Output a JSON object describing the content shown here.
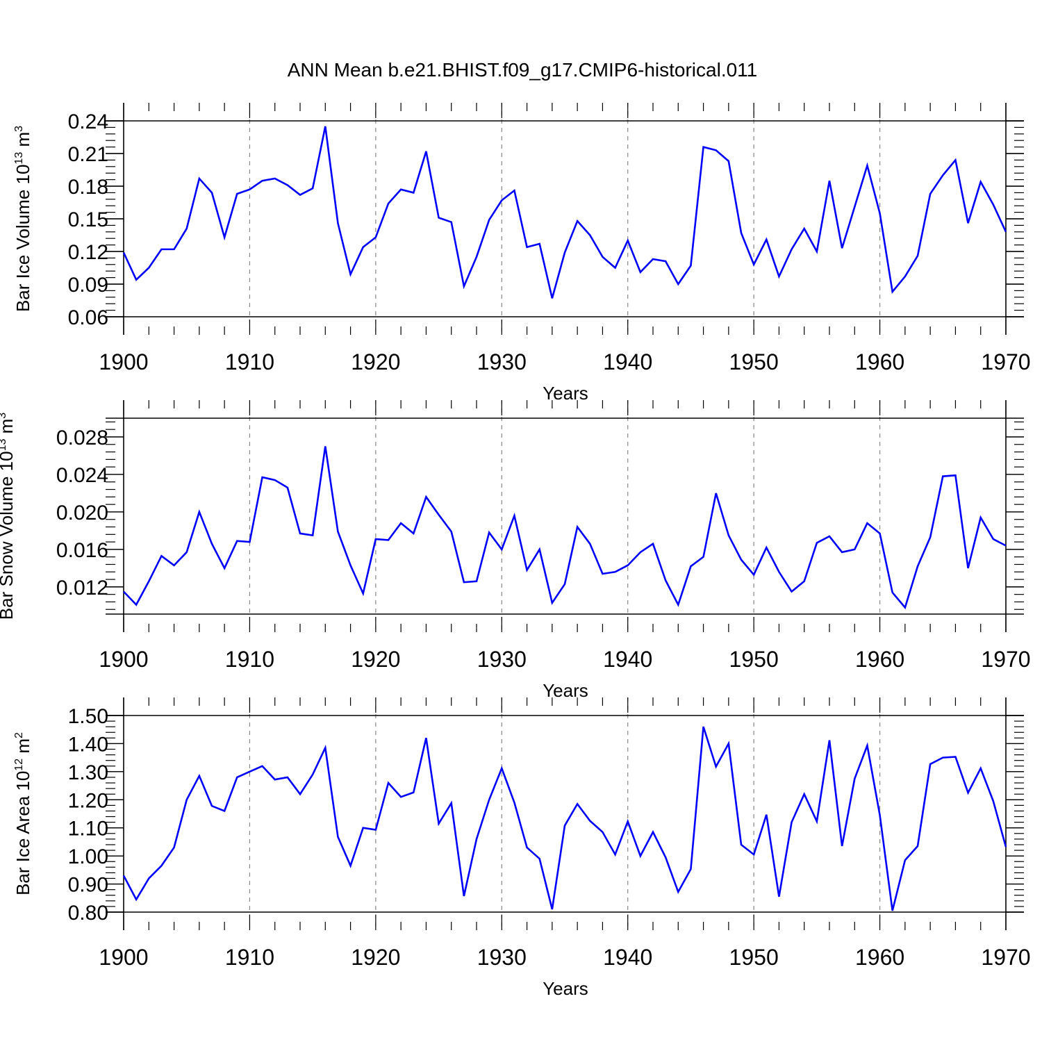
{
  "title": "ANN Mean b.e21.BHIST.f09_g17.CMIP6-historical.011",
  "colors": {
    "line": "#0000ff",
    "axis": "#000000",
    "grid": "#888888"
  },
  "chart_data": [
    {
      "type": "line",
      "xlabel": "Years",
      "ylabel": {
        "prefix": "Bar Ice Volume 10",
        "exp": "13",
        "unit": " m",
        "unit_exp": "3"
      },
      "xlim": [
        1900,
        1970
      ],
      "ylim": [
        0.06,
        0.24
      ],
      "xticks": [
        "1900",
        "1910",
        "1920",
        "1930",
        "1940",
        "1950",
        "1960",
        "1970"
      ],
      "yticks": [
        "0.06",
        "0.09",
        "0.12",
        "0.15",
        "0.18",
        "0.21",
        "0.24"
      ],
      "ytick_values": [
        0.06,
        0.09,
        0.12,
        0.15,
        0.18,
        0.21,
        0.24
      ],
      "grid": "vertical dashed at decades",
      "x_start": 1900,
      "values": [
        0.119,
        0.094,
        0.105,
        0.122,
        0.122,
        0.141,
        0.187,
        0.174,
        0.133,
        0.173,
        0.177,
        0.185,
        0.187,
        0.181,
        0.172,
        0.178,
        0.235,
        0.146,
        0.099,
        0.124,
        0.133,
        0.164,
        0.177,
        0.174,
        0.212,
        0.151,
        0.147,
        0.088,
        0.115,
        0.149,
        0.167,
        0.176,
        0.124,
        0.127,
        0.077,
        0.119,
        0.148,
        0.135,
        0.115,
        0.105,
        0.13,
        0.101,
        0.113,
        0.111,
        0.09,
        0.107,
        0.216,
        0.213,
        0.203,
        0.137,
        0.108,
        0.131,
        0.097,
        0.122,
        0.141,
        0.12,
        0.185,
        0.123,
        0.161,
        0.199,
        0.155,
        0.083,
        0.097,
        0.116,
        0.173,
        0.19,
        0.204,
        0.146,
        0.184,
        0.163,
        0.138
      ]
    },
    {
      "type": "line",
      "xlabel": "Years",
      "ylabel": {
        "prefix": "Bar Snow Volume 10",
        "exp": "13",
        "unit": " m",
        "unit_exp": "3"
      },
      "xlim": [
        1900,
        1970
      ],
      "ylim": [
        0.0091,
        0.03
      ],
      "xticks": [
        "1900",
        "1910",
        "1920",
        "1930",
        "1940",
        "1950",
        "1960",
        "1970"
      ],
      "yticks": [
        "0.012",
        "0.016",
        "0.020",
        "0.024",
        "0.028"
      ],
      "ytick_values": [
        0.012,
        0.016,
        0.02,
        0.024,
        0.028
      ],
      "grid": "vertical dashed at decades",
      "x_start": 1900,
      "values": [
        0.0115,
        0.0101,
        0.0126,
        0.0153,
        0.0143,
        0.0157,
        0.02,
        0.0166,
        0.014,
        0.0169,
        0.0168,
        0.0237,
        0.0234,
        0.0226,
        0.0177,
        0.0175,
        0.027,
        0.0179,
        0.0143,
        0.0113,
        0.0171,
        0.017,
        0.0188,
        0.0177,
        0.0216,
        0.0197,
        0.0179,
        0.0125,
        0.0126,
        0.0178,
        0.016,
        0.0196,
        0.0138,
        0.016,
        0.0103,
        0.0123,
        0.0184,
        0.0166,
        0.0134,
        0.0136,
        0.0143,
        0.0157,
        0.0166,
        0.0127,
        0.0101,
        0.0142,
        0.0152,
        0.022,
        0.0175,
        0.0149,
        0.0133,
        0.0162,
        0.0136,
        0.0115,
        0.0126,
        0.0167,
        0.0174,
        0.0157,
        0.016,
        0.0188,
        0.0177,
        0.0114,
        0.0098,
        0.0142,
        0.0173,
        0.0238,
        0.0239,
        0.014,
        0.0194,
        0.0171,
        0.0164
      ]
    },
    {
      "type": "line",
      "xlabel": "Years",
      "ylabel": {
        "prefix": "Bar Ice Area 10",
        "exp": "12",
        "unit": " m",
        "unit_exp": "2"
      },
      "xlim": [
        1900,
        1970
      ],
      "ylim": [
        0.8,
        1.5
      ],
      "xticks": [
        "1900",
        "1910",
        "1920",
        "1930",
        "1940",
        "1950",
        "1960",
        "1970"
      ],
      "yticks": [
        "0.80",
        "0.90",
        "1.00",
        "1.10",
        "1.20",
        "1.30",
        "1.40",
        "1.50"
      ],
      "ytick_values": [
        0.8,
        0.9,
        1.0,
        1.1,
        1.2,
        1.3,
        1.4,
        1.5
      ],
      "grid": "vertical dashed at decades",
      "x_start": 1900,
      "values": [
        0.93,
        0.845,
        0.92,
        0.965,
        1.03,
        1.2,
        1.285,
        1.178,
        1.16,
        1.28,
        1.3,
        1.32,
        1.272,
        1.28,
        1.22,
        1.29,
        1.385,
        1.068,
        0.965,
        1.1,
        1.093,
        1.26,
        1.21,
        1.226,
        1.42,
        1.115,
        1.188,
        0.857,
        1.06,
        1.2,
        1.312,
        1.19,
        1.03,
        0.99,
        0.81,
        1.108,
        1.185,
        1.125,
        1.085,
        1.005,
        1.123,
        1.0,
        1.085,
        0.995,
        0.872,
        0.953,
        1.46,
        1.318,
        1.4,
        1.04,
        1.005,
        1.147,
        0.855,
        1.12,
        1.22,
        1.123,
        1.412,
        1.035,
        1.275,
        1.393,
        1.145,
        0.805,
        0.985,
        1.035,
        1.327,
        1.35,
        1.353,
        1.225,
        1.312,
        1.195,
        1.032
      ]
    }
  ]
}
